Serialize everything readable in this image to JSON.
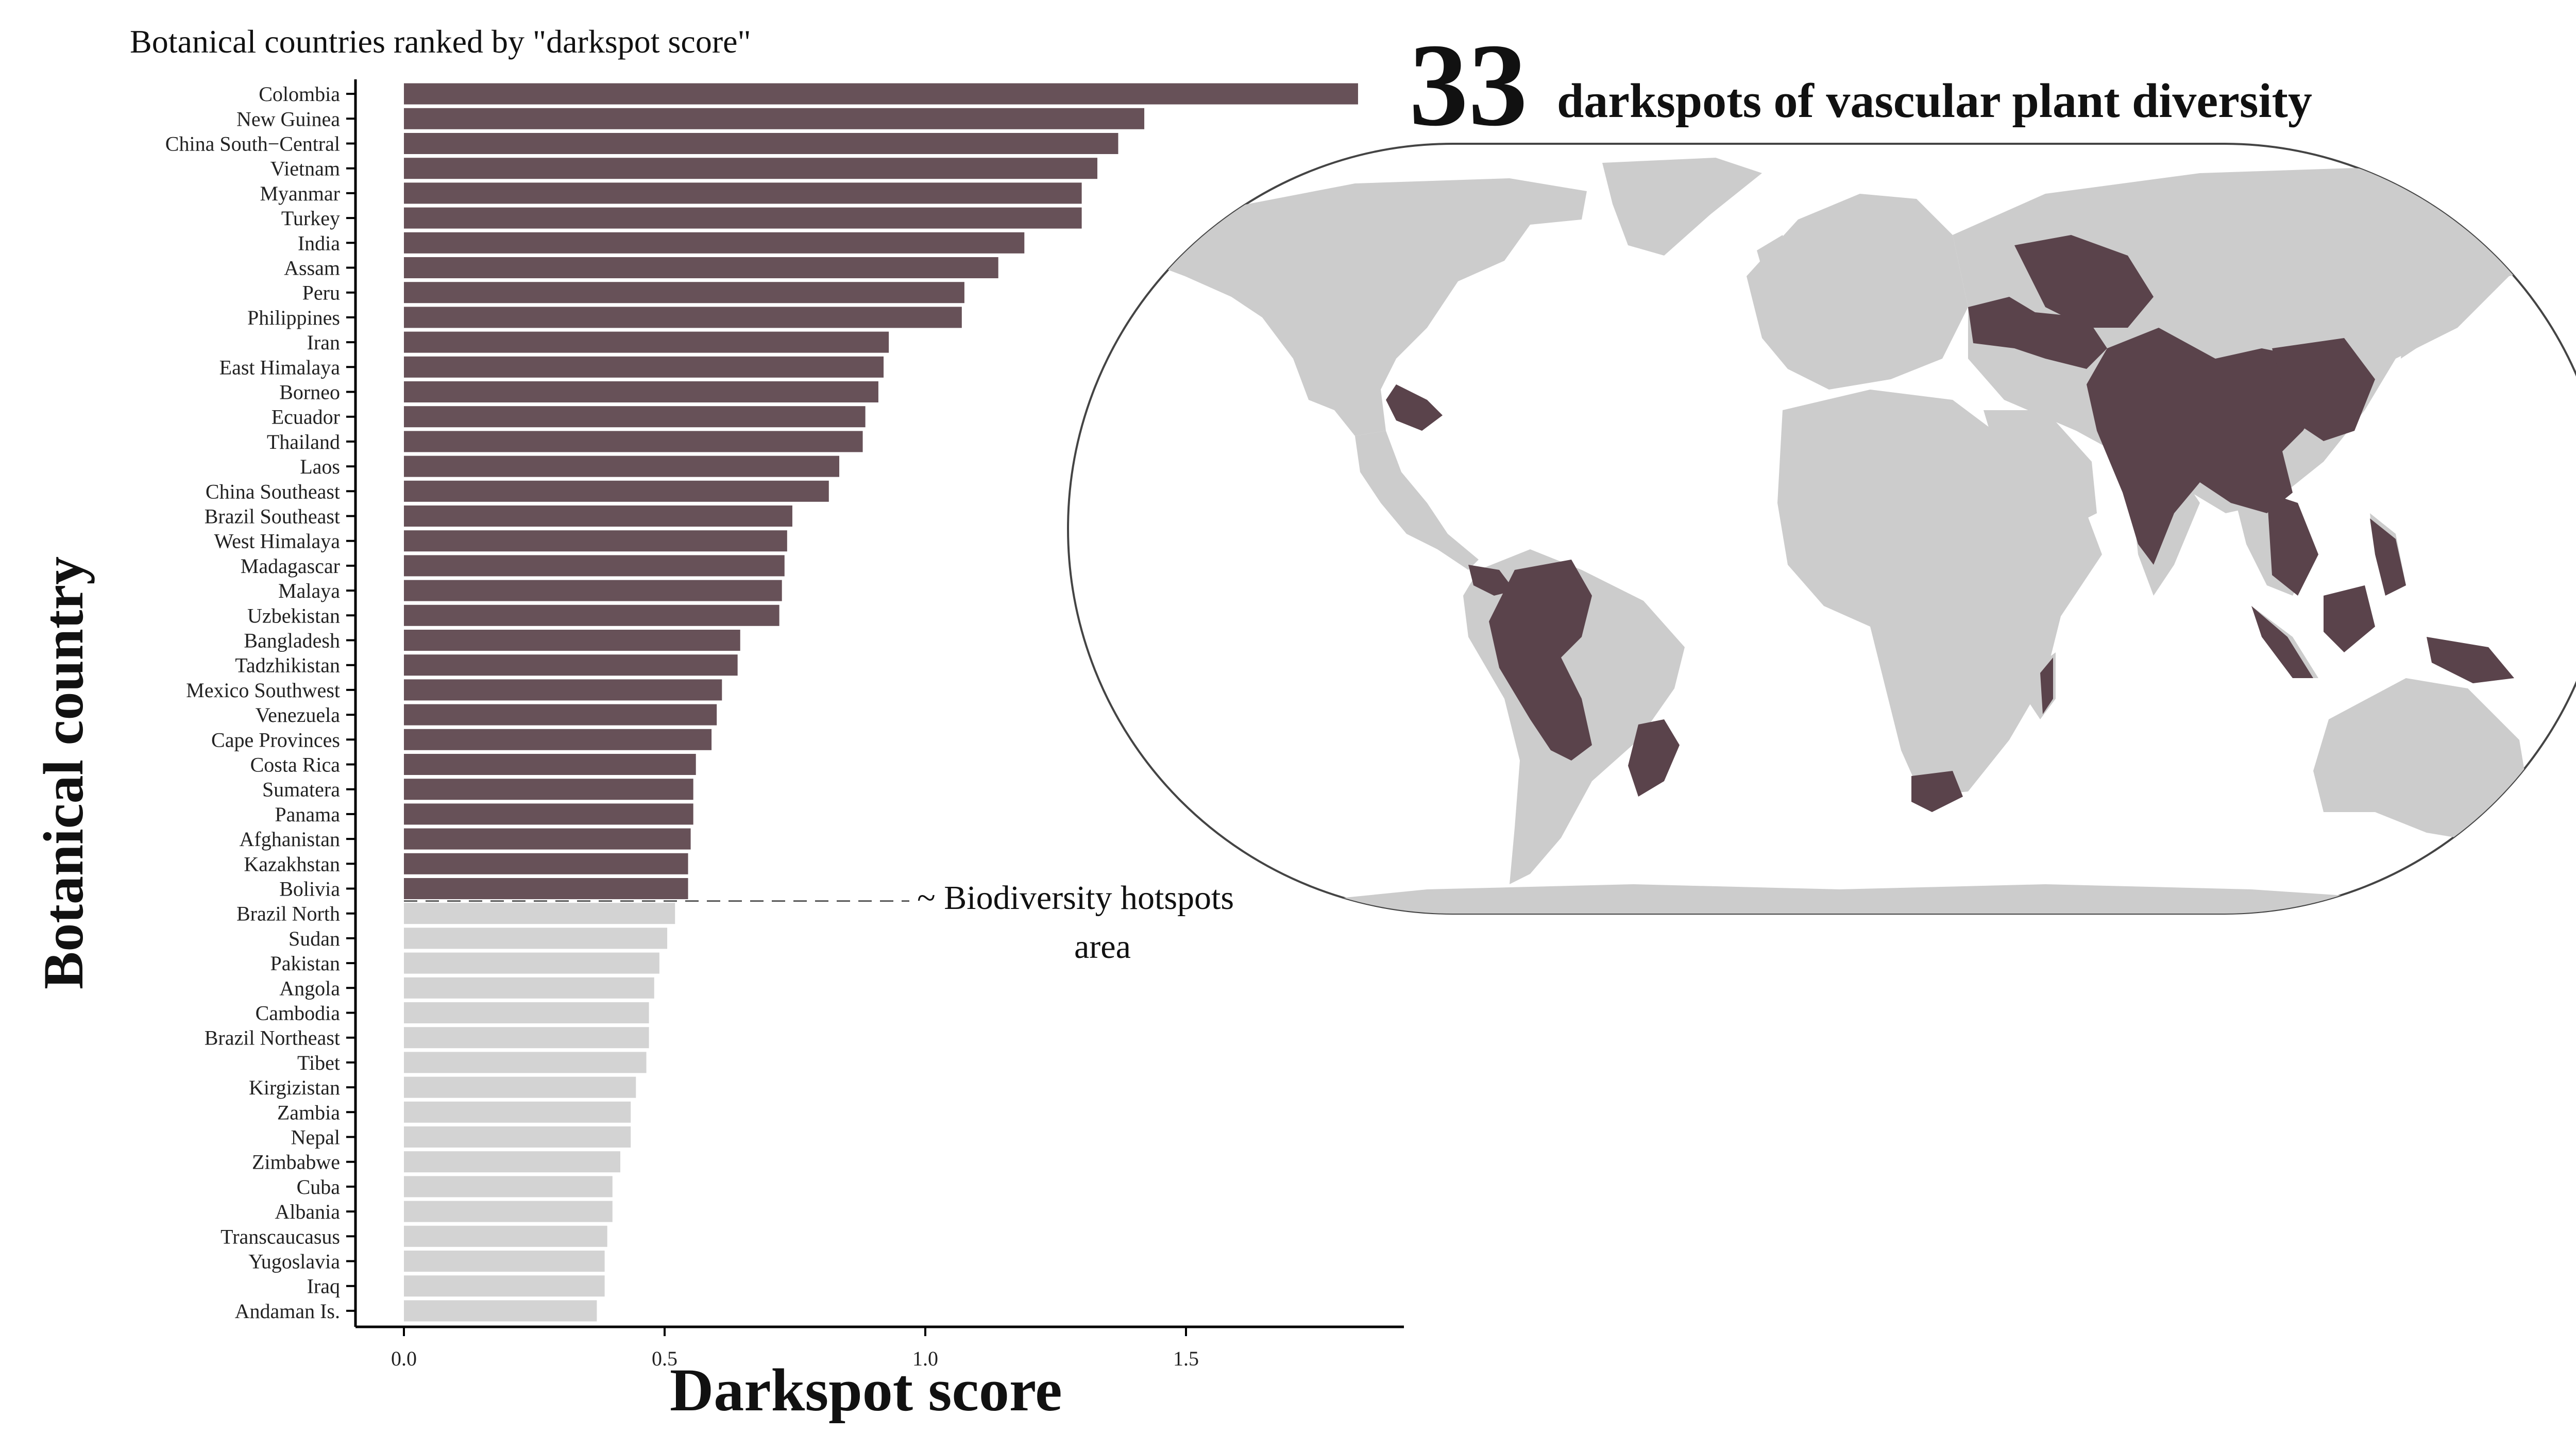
{
  "figure": {
    "subtitle": "Botanical countries ranked by \"darkspot score\"",
    "map_count": "33",
    "map_title": "darkspots of vascular plant diversity",
    "hotspots_annotation_line1": "~ Biodiversity hotspots",
    "hotspots_annotation_line2": "area"
  },
  "colors": {
    "darkspot": "#675158",
    "other": "#d3d3d3",
    "map_land": "#cccccc",
    "map_highlight": "#5a434b",
    "axis": "#000000"
  },
  "chart_data": {
    "type": "bar",
    "orientation": "horizontal",
    "title": "Botanical countries ranked by \"darkspot score\"",
    "xlabel": "Darkspot score",
    "ylabel": "Botanical country",
    "xlim": [
      -0.09,
      1.92
    ],
    "xticks": [
      0.0,
      0.5,
      1.0,
      1.5
    ],
    "xtick_labels": [
      "0.0",
      "0.5",
      "1.0",
      "1.5"
    ],
    "categories": [
      "Colombia",
      "New Guinea",
      "China South−Central",
      "Vietnam",
      "Myanmar",
      "Turkey",
      "India",
      "Assam",
      "Peru",
      "Philippines",
      "Iran",
      "East Himalaya",
      "Borneo",
      "Ecuador",
      "Thailand",
      "Laos",
      "China Southeast",
      "Brazil Southeast",
      "West Himalaya",
      "Madagascar",
      "Malaya",
      "Uzbekistan",
      "Bangladesh",
      "Tadzhikistan",
      "Mexico Southwest",
      "Venezuela",
      "Cape Provinces",
      "Costa Rica",
      "Sumatera",
      "Panama",
      "Afghanistan",
      "Kazakhstan",
      "Bolivia",
      "Brazil North",
      "Sudan",
      "Pakistan",
      "Angola",
      "Cambodia",
      "Brazil Northeast",
      "Tibet",
      "Kirgizistan",
      "Zambia",
      "Nepal",
      "Zimbabwe",
      "Cuba",
      "Albania",
      "Transcaucasus",
      "Yugoslavia",
      "Iraq",
      "Andaman Is."
    ],
    "values": [
      1.83,
      1.42,
      1.37,
      1.33,
      1.3,
      1.3,
      1.19,
      1.14,
      1.075,
      1.07,
      0.93,
      0.92,
      0.91,
      0.885,
      0.88,
      0.835,
      0.815,
      0.745,
      0.735,
      0.73,
      0.725,
      0.72,
      0.645,
      0.64,
      0.61,
      0.6,
      0.59,
      0.56,
      0.555,
      0.555,
      0.55,
      0.545,
      0.545,
      0.52,
      0.505,
      0.49,
      0.48,
      0.47,
      0.47,
      0.465,
      0.445,
      0.435,
      0.435,
      0.415,
      0.4,
      0.4,
      0.39,
      0.385,
      0.385,
      0.37
    ],
    "darkspot_count": 33,
    "grid": false,
    "legend": "none"
  }
}
